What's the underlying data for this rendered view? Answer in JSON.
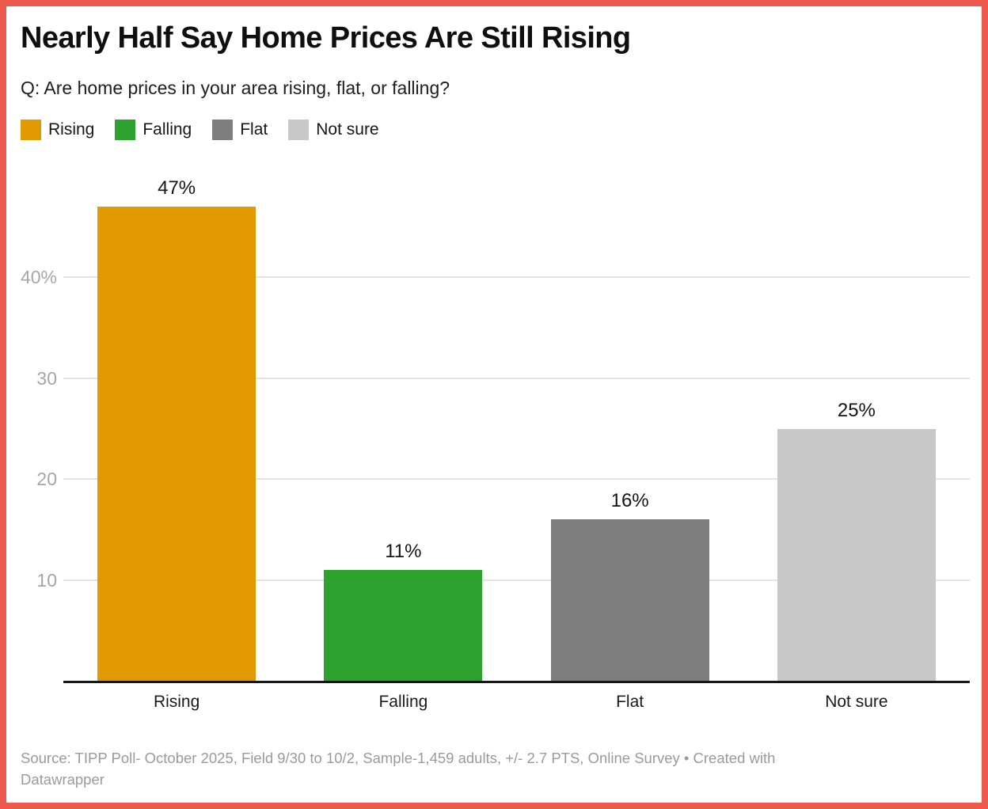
{
  "header": {
    "title": "Nearly Half Say Home Prices Are Still Rising",
    "subtitle": "Q: Are home prices in your area rising, flat, or falling?"
  },
  "chart_data": {
    "type": "bar",
    "title": "Nearly Half Say Home Prices Are Still Rising",
    "subtitle": "Q: Are home prices in your area rising, flat, or falling?",
    "categories": [
      "Rising",
      "Falling",
      "Flat",
      "Not sure"
    ],
    "values": [
      47,
      11,
      16,
      25
    ],
    "value_labels": [
      "47%",
      "11%",
      "16%",
      "25%"
    ],
    "colors": [
      "#E29A02",
      "#2EA22E",
      "#7E7E7E",
      "#C8C8C8"
    ],
    "legend": [
      "Rising",
      "Falling",
      "Flat",
      "Not sure"
    ],
    "legend_position": "top",
    "xlabel": "",
    "ylabel": "",
    "ylim": [
      0,
      47
    ],
    "yticks": [
      10,
      20,
      30,
      40
    ],
    "ytick_labels": [
      "10",
      "20",
      "30",
      "40%"
    ],
    "grid": true
  },
  "footer": {
    "source_line1": "Source: TIPP Poll- October 2025, Field 9/30 to 10/2, Sample-1,459 adults, +/- 2.7 PTS, Online Survey • Created with",
    "source_line2": "Datawrapper"
  },
  "style": {
    "frame_color": "#EC584B",
    "gridline_color": "#E3E3E3",
    "axis_color": "#161616",
    "tick_label_color": "#A6A6A6",
    "source_color": "#9A9A9A"
  }
}
